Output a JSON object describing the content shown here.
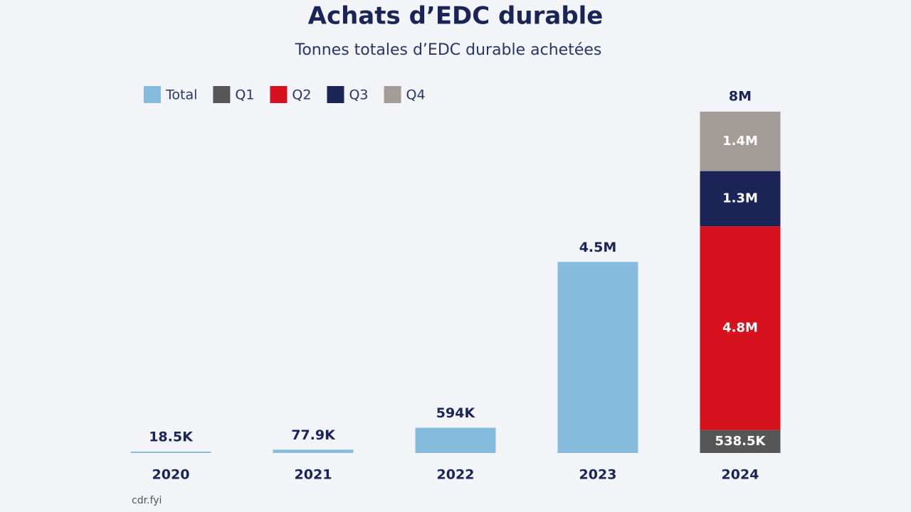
{
  "chart_data": {
    "type": "stacked-bar",
    "title": "Achats d’EDC durable",
    "subtitle": "Tonnes totales d’EDC durable achetées",
    "source": "cdr.fyi",
    "categories": [
      "2020",
      "2021",
      "2022",
      "2023",
      "2024"
    ],
    "series": [
      {
        "name": "Total",
        "color": "#85bcdd",
        "label_position": "above",
        "values": [
          18500,
          77900,
          594000,
          4500000,
          null
        ],
        "value_labels": [
          "18.5K",
          "77.9K",
          "594K",
          "4.5M",
          null
        ]
      },
      {
        "name": "Q1",
        "color": "#565656",
        "label_position": "inside",
        "values": [
          null,
          null,
          null,
          null,
          538500
        ],
        "value_labels": [
          null,
          null,
          null,
          null,
          "538.5K"
        ]
      },
      {
        "name": "Q2",
        "color": "#d7121f",
        "label_position": "inside",
        "values": [
          null,
          null,
          null,
          null,
          4800000
        ],
        "value_labels": [
          null,
          null,
          null,
          null,
          "4.8M"
        ]
      },
      {
        "name": "Q3",
        "color": "#1a2456",
        "label_position": "inside",
        "values": [
          null,
          null,
          null,
          null,
          1300000
        ],
        "value_labels": [
          null,
          null,
          null,
          null,
          "1.3M"
        ]
      },
      {
        "name": "Q4",
        "color": "#a39c96",
        "label_position": "inside",
        "values": [
          null,
          null,
          null,
          null,
          1400000
        ],
        "value_labels": [
          null,
          null,
          null,
          null,
          "1.4M"
        ]
      }
    ],
    "stack_totals": [
      null,
      null,
      null,
      null,
      8000000
    ],
    "stack_total_labels": [
      null,
      null,
      null,
      null,
      "8M"
    ]
  }
}
